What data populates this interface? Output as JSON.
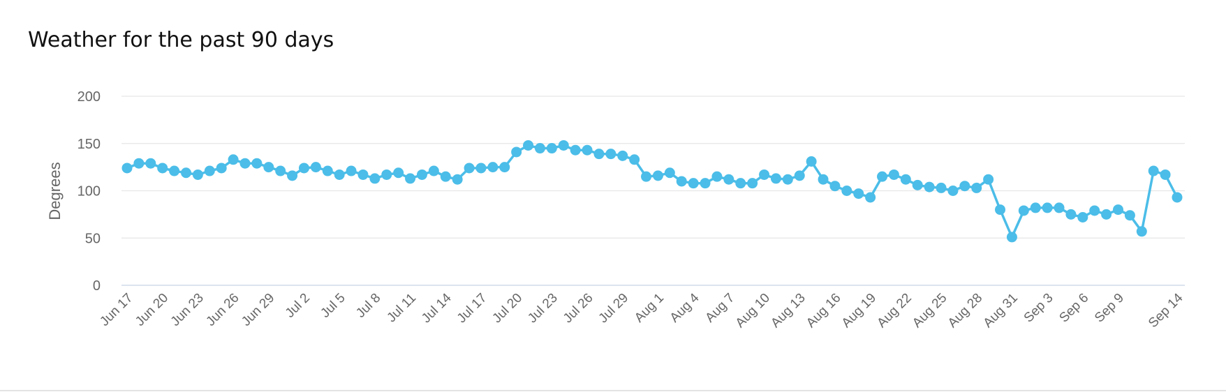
{
  "title": "Weather for the past 90 days",
  "chart_data": {
    "type": "line",
    "title": "Weather for the past 90 days",
    "xlabel": "",
    "ylabel": "Degrees",
    "ylim": [
      0,
      200
    ],
    "y_ticks": [
      0,
      50,
      100,
      150,
      200
    ],
    "grid": true,
    "color": "#4bbde8",
    "x_tick_labels": [
      "Jun 17",
      "Jun 20",
      "Jun 23",
      "Jun 26",
      "Jun 29",
      "Jul 2",
      "Jul 5",
      "Jul 8",
      "Jul 11",
      "Jul 14",
      "Jul 17",
      "Jul 20",
      "Jul 23",
      "Jul 26",
      "Jul 29",
      "Aug 1",
      "Aug 4",
      "Aug 7",
      "Aug 10",
      "Aug 13",
      "Aug 16",
      "Aug 19",
      "Aug 22",
      "Aug 25",
      "Aug 28",
      "Aug 31",
      "Sep 3",
      "Sep 6",
      "Sep 9",
      "Sep 14"
    ],
    "x": [
      "Jun 17",
      "Jun 18",
      "Jun 19",
      "Jun 20",
      "Jun 21",
      "Jun 22",
      "Jun 23",
      "Jun 24",
      "Jun 25",
      "Jun 26",
      "Jun 27",
      "Jun 28",
      "Jun 29",
      "Jun 30",
      "Jul 1",
      "Jul 2",
      "Jul 3",
      "Jul 4",
      "Jul 5",
      "Jul 6",
      "Jul 7",
      "Jul 8",
      "Jul 9",
      "Jul 10",
      "Jul 11",
      "Jul 12",
      "Jul 13",
      "Jul 14",
      "Jul 15",
      "Jul 16",
      "Jul 17",
      "Jul 18",
      "Jul 19",
      "Jul 20",
      "Jul 21",
      "Jul 22",
      "Jul 23",
      "Jul 24",
      "Jul 25",
      "Jul 26",
      "Jul 27",
      "Jul 28",
      "Jul 29",
      "Jul 30",
      "Jul 31",
      "Aug 1",
      "Aug 2",
      "Aug 3",
      "Aug 4",
      "Aug 5",
      "Aug 6",
      "Aug 7",
      "Aug 8",
      "Aug 9",
      "Aug 10",
      "Aug 11",
      "Aug 12",
      "Aug 13",
      "Aug 14",
      "Aug 15",
      "Aug 16",
      "Aug 17",
      "Aug 18",
      "Aug 19",
      "Aug 20",
      "Aug 21",
      "Aug 22",
      "Aug 23",
      "Aug 24",
      "Aug 25",
      "Aug 26",
      "Aug 27",
      "Aug 28",
      "Aug 29",
      "Aug 30",
      "Aug 31",
      "Sep 1",
      "Sep 2",
      "Sep 3",
      "Sep 4",
      "Sep 5",
      "Sep 6",
      "Sep 7",
      "Sep 8",
      "Sep 9",
      "Sep 10",
      "Sep 11",
      "Sep 12",
      "Sep 13",
      "Sep 14"
    ],
    "series": [
      {
        "values": [
          124,
          129,
          129,
          124,
          121,
          119,
          117,
          121,
          124,
          133,
          129,
          129,
          125,
          121,
          116,
          124,
          125,
          121,
          117,
          121,
          117,
          113,
          117,
          119,
          113,
          117,
          121,
          115,
          112,
          124,
          124,
          125,
          125,
          141,
          148,
          145,
          145,
          148,
          143,
          143,
          139,
          139,
          137,
          133,
          115,
          116,
          119,
          110,
          108,
          108,
          115,
          112,
          108,
          108,
          117,
          113,
          112,
          116,
          131,
          112,
          105,
          100,
          97,
          93,
          115,
          117,
          112,
          106,
          104,
          103,
          100,
          105,
          103,
          112,
          80,
          51,
          79,
          82,
          82,
          82,
          75,
          72,
          79,
          75,
          80,
          74,
          57,
          121,
          117,
          93
        ]
      }
    ]
  }
}
